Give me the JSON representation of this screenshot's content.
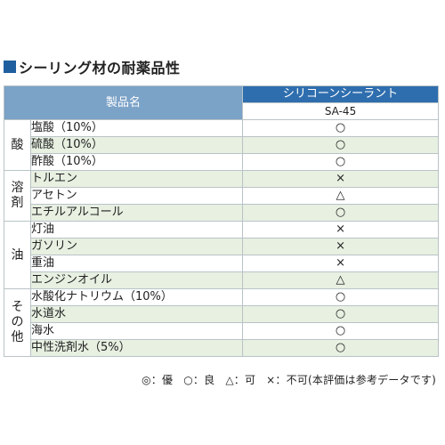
{
  "title": "シーリング材の耐薬品性",
  "table": {
    "product_header": "製品名",
    "series_header": "シリコーンシーラント",
    "model_header": "SA-45",
    "groups": [
      {
        "label": "酸",
        "items": [
          {
            "name": "塩酸（10%）",
            "rating": "○"
          },
          {
            "name": "硫酸（10%）",
            "rating": "○"
          },
          {
            "name": "酢酸（10%）",
            "rating": "○"
          }
        ]
      },
      {
        "label": "溶剤",
        "items": [
          {
            "name": "トルエン",
            "rating": "×"
          },
          {
            "name": "アセトン",
            "rating": "△"
          },
          {
            "name": "エチルアルコール",
            "rating": "○"
          }
        ]
      },
      {
        "label": "油",
        "items": [
          {
            "name": "灯油",
            "rating": "×"
          },
          {
            "name": "ガソリン",
            "rating": "×"
          },
          {
            "name": "重油",
            "rating": "×"
          },
          {
            "name": "エンジンオイル",
            "rating": "△"
          }
        ]
      },
      {
        "label": "その他",
        "items": [
          {
            "name": "水酸化ナトリウム（10%）",
            "rating": "○"
          },
          {
            "name": "水道水",
            "rating": "○"
          },
          {
            "name": "海水",
            "rating": "○"
          },
          {
            "name": "中性洗剤水（5%）",
            "rating": "○"
          }
        ]
      }
    ]
  },
  "legend": [
    "◎：優",
    "○：良",
    "△：可",
    "×：不可(本評価は参考データです)"
  ],
  "colors": {
    "title_square": "#1f5fa0",
    "header_dark": "#2f6eae",
    "header_light": "#7ba2c7",
    "row_stripe": "#e7f0e1",
    "border": "#b9c3c7"
  }
}
